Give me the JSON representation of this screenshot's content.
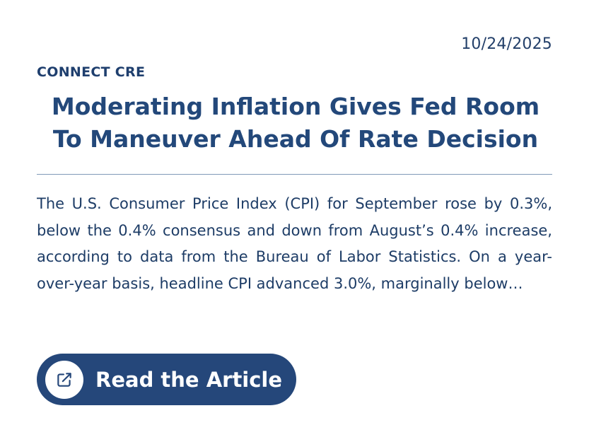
{
  "article": {
    "date": "10/24/2025",
    "source": "CONNECT CRE",
    "headline": "Moderating Inflation Gives Fed Room To Maneuver Ahead Of Rate Decision",
    "summary": "The U.S. Consumer Price Index (CPI) for September rose by 0.3%, below the 0.4% consensus and down from August’s 0.4% increase, according to data from the Bureau of Labor Statistics. On a year-over-year basis, headline CPI advanced 3.0%, marginally below…"
  },
  "cta": {
    "label": "Read the Article",
    "icon": "external-link-icon"
  },
  "colors": {
    "primary": "#25477a",
    "text": "#1d3c66",
    "divider": "#7f9ab8",
    "background": "#ffffff"
  }
}
